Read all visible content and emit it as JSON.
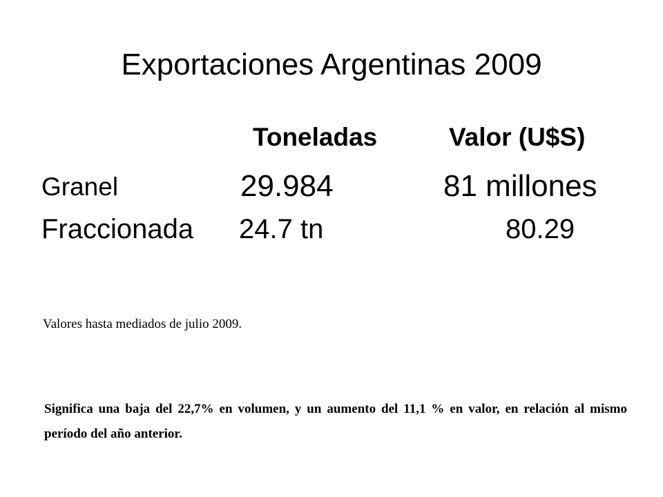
{
  "slide": {
    "title": "Exportaciones Argentinas 2009",
    "columns": {
      "toneladas": "Toneladas",
      "valor": "Valor (U$S)"
    },
    "rows": [
      {
        "label": "Granel",
        "toneladas": "29.984",
        "valor": "81 millones"
      },
      {
        "label": "Fraccionada",
        "toneladas": "24.7 tn",
        "valor": "80.29"
      }
    ],
    "note": "Valores hasta mediados de julio 2009.",
    "summary": "Significa una baja del 22,7% en volumen, y un aumento del 11,1 % en valor, en relación al mismo período del año anterior."
  }
}
